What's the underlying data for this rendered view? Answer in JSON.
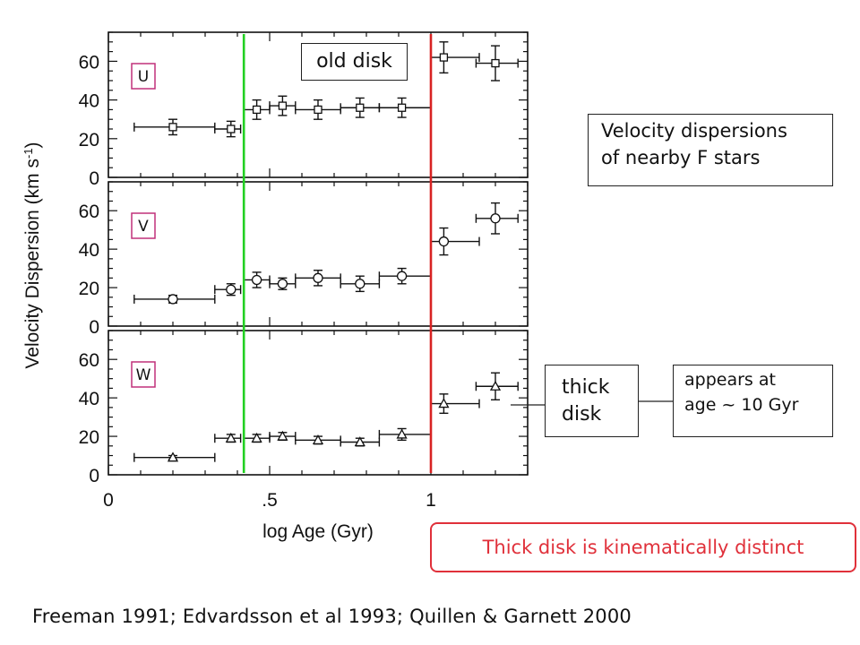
{
  "chart_data": {
    "type": "scatter",
    "title": "",
    "xlabel": "log Age (Gyr)",
    "ylabel_main": "Velocity Dispersion (km s",
    "ylabel_sup": "-1",
    "ylabel_close": ")",
    "xlim": [
      0,
      1.3
    ],
    "ylim": [
      0,
      75
    ],
    "x_ticks": [
      {
        "value": 0,
        "label": "0"
      },
      {
        "value": 0.5,
        "label": ".5"
      },
      {
        "value": 1,
        "label": "1"
      }
    ],
    "y_ticks": [
      0,
      20,
      40,
      60
    ],
    "vlines": [
      {
        "x": 0.42,
        "color": "#22d022"
      },
      {
        "x": 1.0,
        "color": "#d82222"
      }
    ],
    "panels": [
      {
        "label": "U",
        "marker": "square",
        "points": [
          {
            "x": 0.2,
            "y": 26,
            "xerr": [
              0.12,
              0.13
            ],
            "yerr": 4
          },
          {
            "x": 0.38,
            "y": 25,
            "xerr": [
              0.05,
              0.03
            ],
            "yerr": 4
          },
          {
            "x": 0.46,
            "y": 35,
            "xerr": [
              0.04,
              0.04
            ],
            "yerr": 5
          },
          {
            "x": 0.54,
            "y": 37,
            "xerr": [
              0.04,
              0.04
            ],
            "yerr": 5
          },
          {
            "x": 0.65,
            "y": 35,
            "xerr": [
              0.07,
              0.07
            ],
            "yerr": 5
          },
          {
            "x": 0.78,
            "y": 36,
            "xerr": [
              0.06,
              0.06
            ],
            "yerr": 5
          },
          {
            "x": 0.91,
            "y": 36,
            "xerr": [
              0.07,
              0.09
            ],
            "yerr": 5
          },
          {
            "x": 1.04,
            "y": 62,
            "xerr": [
              0.04,
              0.11
            ],
            "yerr": 8
          },
          {
            "x": 1.2,
            "y": 59,
            "xerr": [
              0.06,
              0.07
            ],
            "yerr": 9
          }
        ]
      },
      {
        "label": "V",
        "marker": "circle",
        "points": [
          {
            "x": 0.2,
            "y": 14,
            "xerr": [
              0.12,
              0.13
            ],
            "yerr": 2
          },
          {
            "x": 0.38,
            "y": 19,
            "xerr": [
              0.05,
              0.03
            ],
            "yerr": 3
          },
          {
            "x": 0.46,
            "y": 24,
            "xerr": [
              0.04,
              0.04
            ],
            "yerr": 4
          },
          {
            "x": 0.54,
            "y": 22,
            "xerr": [
              0.04,
              0.04
            ],
            "yerr": 3
          },
          {
            "x": 0.65,
            "y": 25,
            "xerr": [
              0.07,
              0.07
            ],
            "yerr": 4
          },
          {
            "x": 0.78,
            "y": 22,
            "xerr": [
              0.06,
              0.06
            ],
            "yerr": 4
          },
          {
            "x": 0.91,
            "y": 26,
            "xerr": [
              0.07,
              0.09
            ],
            "yerr": 4
          },
          {
            "x": 1.04,
            "y": 44,
            "xerr": [
              0.04,
              0.11
            ],
            "yerr": 7
          },
          {
            "x": 1.2,
            "y": 56,
            "xerr": [
              0.06,
              0.07
            ],
            "yerr": 8
          }
        ]
      },
      {
        "label": "W",
        "marker": "triangle",
        "points": [
          {
            "x": 0.2,
            "y": 9,
            "xerr": [
              0.12,
              0.13
            ],
            "yerr": 1
          },
          {
            "x": 0.38,
            "y": 19,
            "xerr": [
              0.05,
              0.03
            ],
            "yerr": 2
          },
          {
            "x": 0.46,
            "y": 19,
            "xerr": [
              0.04,
              0.04
            ],
            "yerr": 2
          },
          {
            "x": 0.54,
            "y": 20,
            "xerr": [
              0.04,
              0.04
            ],
            "yerr": 2
          },
          {
            "x": 0.65,
            "y": 18,
            "xerr": [
              0.07,
              0.07
            ],
            "yerr": 2
          },
          {
            "x": 0.78,
            "y": 17,
            "xerr": [
              0.06,
              0.06
            ],
            "yerr": 2
          },
          {
            "x": 0.91,
            "y": 21,
            "xerr": [
              0.07,
              0.09
            ],
            "yerr": 3
          },
          {
            "x": 1.04,
            "y": 37,
            "xerr": [
              0.04,
              0.11
            ],
            "yerr": 5
          },
          {
            "x": 1.2,
            "y": 46,
            "xerr": [
              0.06,
              0.07
            ],
            "yerr": 7
          }
        ]
      }
    ]
  },
  "annotations": {
    "title_line1": "Velocity dispersions",
    "title_line2": "of nearby F stars",
    "old_disk": "old disk",
    "thick_line1": "thick",
    "thick_line2": "disk",
    "appears_line1": "appears at",
    "appears_line2": "age ~ 10 Gyr",
    "conclusion": "Thick disk is kinematically distinct"
  },
  "citation": "Freeman 1991; Edvardsson et al 1993; Quillen & Garnett 2000",
  "colors": {
    "green_line": "#22d022",
    "red_line": "#d82222",
    "panel_label_border": "#c0307a",
    "conclusion": "#e0303a"
  }
}
